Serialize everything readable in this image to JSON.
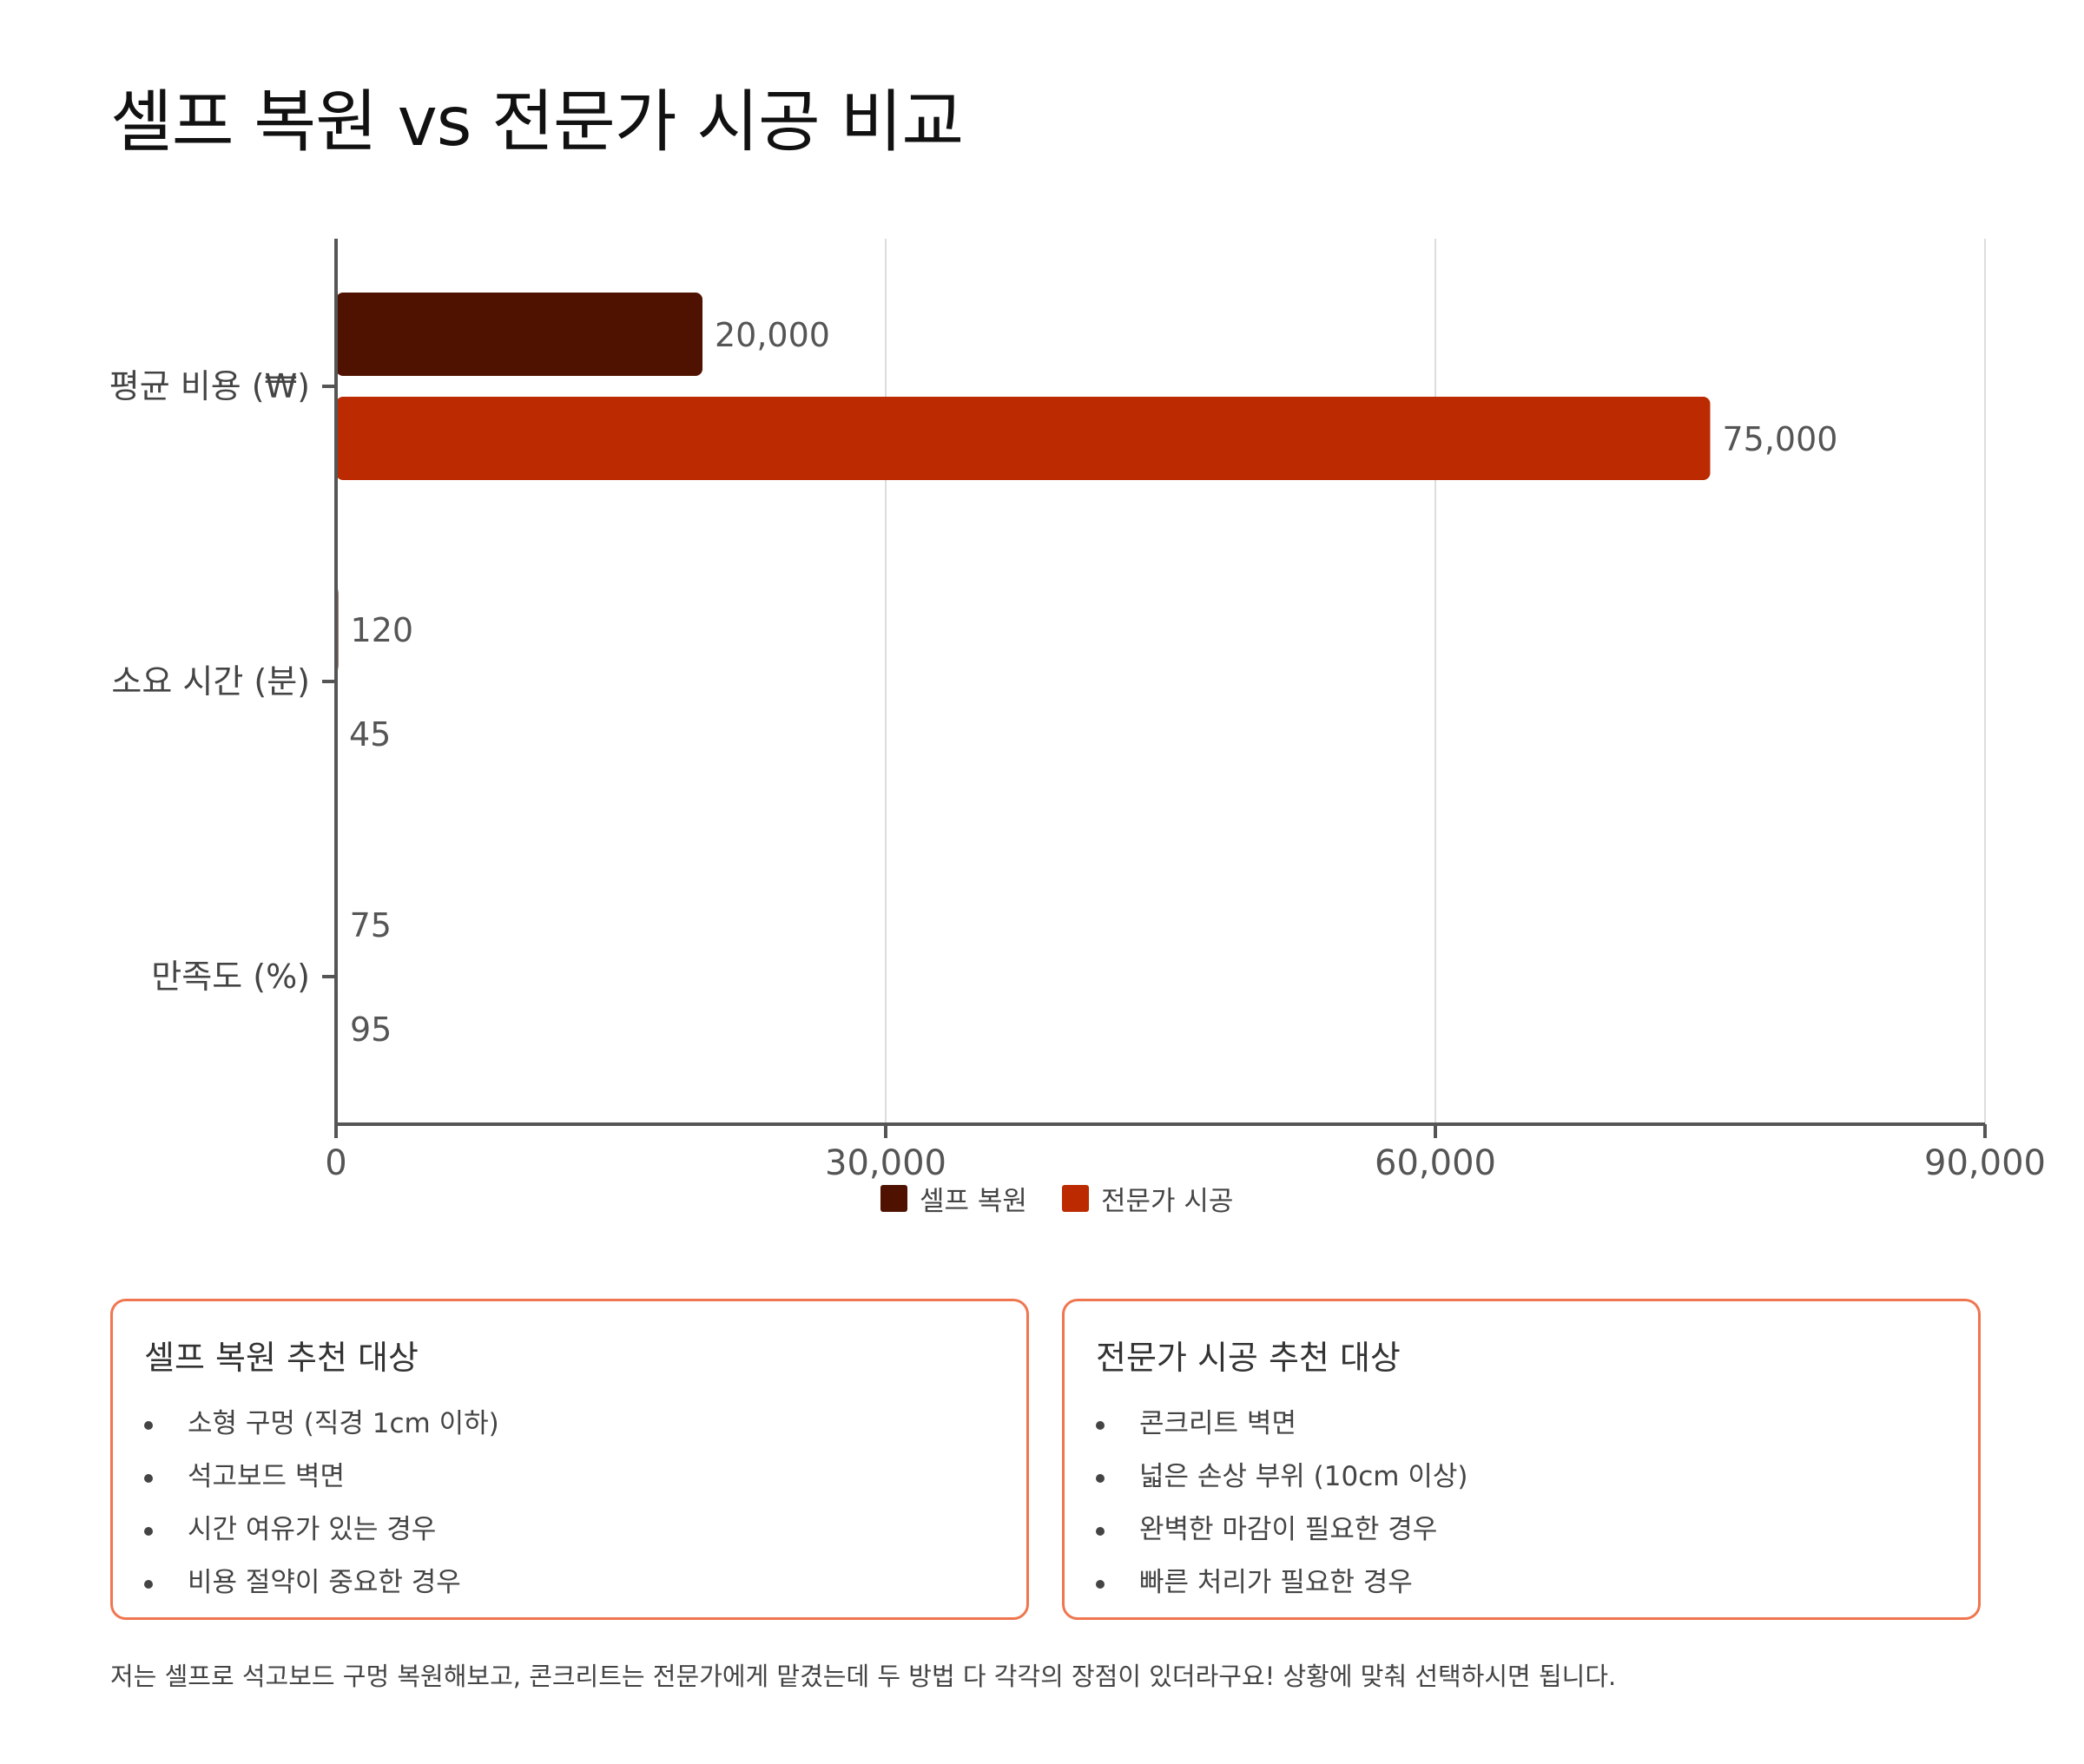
{
  "title": "셀프 복원 vs 전문가 시공 비교",
  "chart_data": {
    "type": "bar",
    "orientation": "horizontal",
    "categories": [
      "평균 비용 (₩)",
      "소요 시간 (분)",
      "만족도 (%)"
    ],
    "series": [
      {
        "name": "셀프 복원",
        "values": [
          20000,
          120,
          75
        ],
        "labels": [
          "20,000",
          "120",
          "75"
        ],
        "color": "#4f1200"
      },
      {
        "name": "전문가 시공",
        "values": [
          75000,
          45,
          95
        ],
        "labels": [
          "75,000",
          "45",
          "95"
        ],
        "color": "#bb2a00"
      }
    ],
    "x_ticks": [
      0,
      30000,
      60000,
      90000
    ],
    "x_tick_labels": [
      "0",
      "30,000",
      "60,000",
      "90,000"
    ],
    "xlim": [
      0,
      90000
    ],
    "grid": "vertical",
    "legend_position": "bottom-center"
  },
  "cards": [
    {
      "title": "셀프 복원 추천 대상",
      "items": [
        "소형 구멍 (직경 1cm 이하)",
        "석고보드 벽면",
        "시간 여유가 있는 경우",
        "비용 절약이 중요한 경우"
      ]
    },
    {
      "title": "전문가 시공 추천 대상",
      "items": [
        "콘크리트 벽면",
        "넓은 손상 부위 (10cm 이상)",
        "완벽한 마감이 필요한 경우",
        "빠른 처리가 필요한 경우"
      ]
    }
  ],
  "note": "저는 셀프로 석고보드 구멍 복원해보고, 콘크리트는 전문가에게 맡겼는데 두 방법 다 각각의 장점이 있더라구요! 상황에 맞춰 선택하시면 됩니다.",
  "colors": {
    "card_border": "#ef7650",
    "axis": "#555555",
    "grid": "#dddddd"
  }
}
